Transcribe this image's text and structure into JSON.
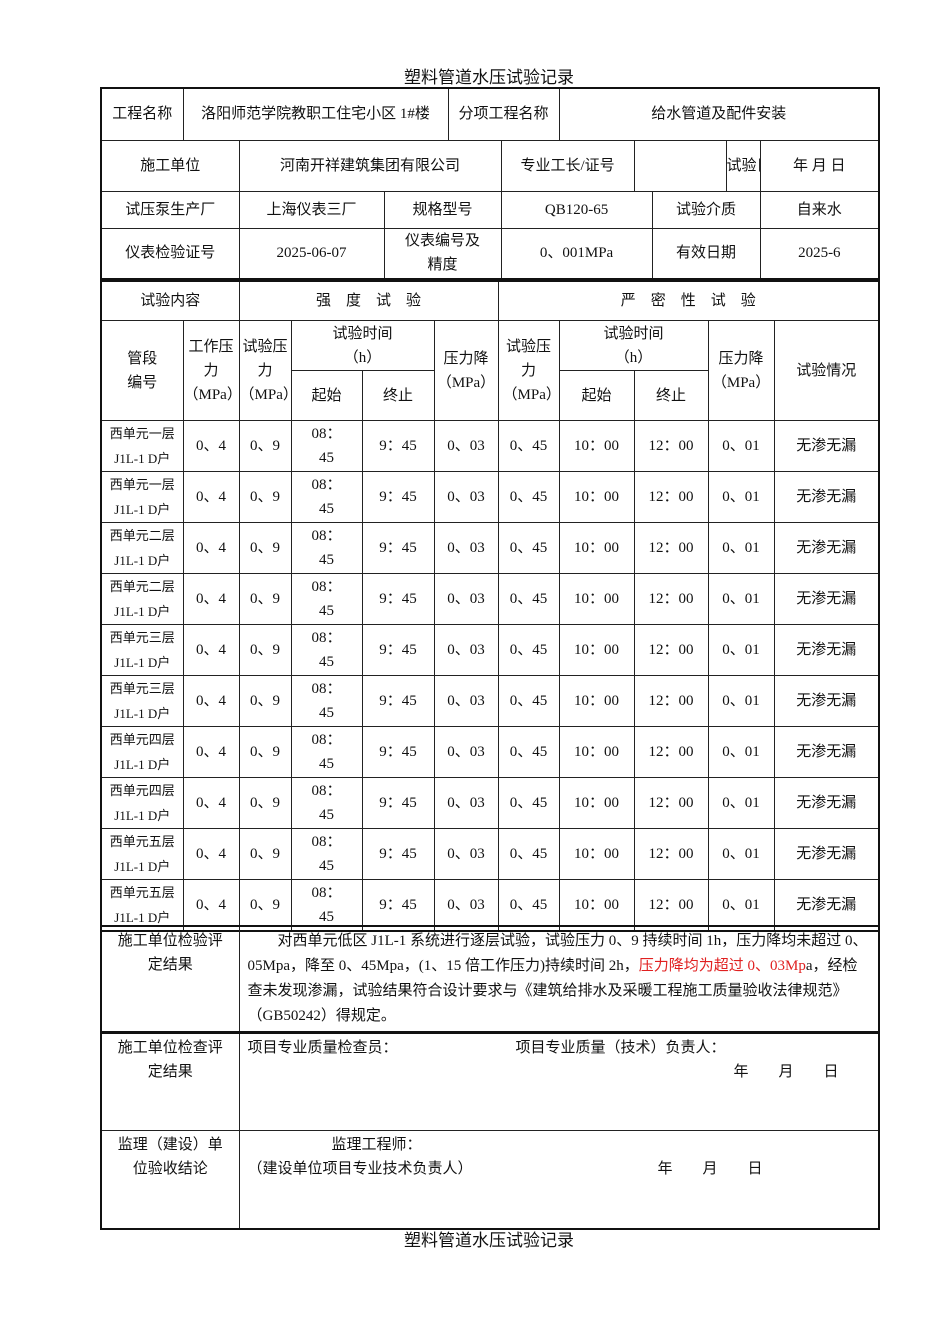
{
  "title": "塑料管道水压试验记录",
  "footer_title": "塑料管道水压试验记录",
  "info": {
    "project_name_label": "工程名称",
    "project_name": "洛阳师范学院教职工住宅小区 1#楼",
    "sub_project_label": "分项工程名称",
    "sub_project": "给水管道及配件安装",
    "contractor_label": "施工单位",
    "contractor": "河南开祥建筑集团有限公司",
    "foreman_label": "专业工长/证号",
    "foreman": "",
    "test_date_label": "试验日期",
    "test_date": "年 月 日",
    "pump_maker_label": "试压泵生产厂",
    "pump_maker": "上海仪表三厂",
    "model_label": "规格型号",
    "model": "QB120-65",
    "medium_label": "试验介质",
    "medium": "自来水",
    "cert_label": "仪表检验证号",
    "cert": "2025-06-07",
    "gauge_label": "仪表编号及精度",
    "gauge": "0、001MPa",
    "valid_label": "有效日期",
    "valid": "2025-6"
  },
  "headers": {
    "content": "试验内容",
    "strength": "强　度　试　验",
    "tightness": "严　密　性　试　验",
    "segment": "管段编号",
    "work_pressure": "工作压力（MPa）",
    "test_pressure": "试验压力（MPa）",
    "test_time": "试验时间（h）",
    "start": "起始",
    "end": "终止",
    "pressure_drop": "压力降（MPa）",
    "t_test_pressure": "试验压力（MPa）",
    "t_test_time": "试验时间（h）",
    "t_start": "起始",
    "t_end": "终止",
    "t_pressure_drop": "压力降（MPa）",
    "result": "试验情况"
  },
  "rows": [
    {
      "seg": "西单元一层 J1L-1 D户",
      "wp": "0、4",
      "tp": "0、9",
      "s": "08：45",
      "e": "9：45",
      "pd": "0、03",
      "ttp": "0、45",
      "ts": "10：00",
      "te": "12：00",
      "tpd": "0、01",
      "r": "无渗无漏"
    },
    {
      "seg": "西单元一层 J1L-1 D户",
      "wp": "0、4",
      "tp": "0、9",
      "s": "08：45",
      "e": "9：45",
      "pd": "0、03",
      "ttp": "0、45",
      "ts": "10：00",
      "te": "12：00",
      "tpd": "0、01",
      "r": "无渗无漏"
    },
    {
      "seg": "西单元二层 J1L-1 D户",
      "wp": "0、4",
      "tp": "0、9",
      "s": "08：45",
      "e": "9：45",
      "pd": "0、03",
      "ttp": "0、45",
      "ts": "10：00",
      "te": "12：00",
      "tpd": "0、01",
      "r": "无渗无漏"
    },
    {
      "seg": "西单元二层 J1L-1 D户",
      "wp": "0、4",
      "tp": "0、9",
      "s": "08：45",
      "e": "9：45",
      "pd": "0、03",
      "ttp": "0、45",
      "ts": "10：00",
      "te": "12：00",
      "tpd": "0、01",
      "r": "无渗无漏"
    },
    {
      "seg": "西单元三层 J1L-1 D户",
      "wp": "0、4",
      "tp": "0、9",
      "s": "08：45",
      "e": "9：45",
      "pd": "0、03",
      "ttp": "0、45",
      "ts": "10：00",
      "te": "12：00",
      "tpd": "0、01",
      "r": "无渗无漏"
    },
    {
      "seg": "西单元三层 J1L-1 D户",
      "wp": "0、4",
      "tp": "0、9",
      "s": "08：45",
      "e": "9：45",
      "pd": "0、03",
      "ttp": "0、45",
      "ts": "10：00",
      "te": "12：00",
      "tpd": "0、01",
      "r": "无渗无漏"
    },
    {
      "seg": "西单元四层 J1L-1 D户",
      "wp": "0、4",
      "tp": "0、9",
      "s": "08：45",
      "e": "9：45",
      "pd": "0、03",
      "ttp": "0、45",
      "ts": "10：00",
      "te": "12：00",
      "tpd": "0、01",
      "r": "无渗无漏"
    },
    {
      "seg": "西单元四层 J1L-1 D户",
      "wp": "0、4",
      "tp": "0、9",
      "s": "08：45",
      "e": "9：45",
      "pd": "0、03",
      "ttp": "0、45",
      "ts": "10：00",
      "te": "12：00",
      "tpd": "0、01",
      "r": "无渗无漏"
    },
    {
      "seg": "西单元五层 J1L-1 D户",
      "wp": "0、4",
      "tp": "0、9",
      "s": "08：45",
      "e": "9：45",
      "pd": "0、03",
      "ttp": "0、45",
      "ts": "10：00",
      "te": "12：00",
      "tpd": "0、01",
      "r": "无渗无漏"
    },
    {
      "seg": "西单元五层 J1L-1 D户",
      "wp": "0、4",
      "tp": "0、9",
      "s": "08：45",
      "e": "9：45",
      "pd": "0、03",
      "ttp": "0、45",
      "ts": "10：00",
      "te": "12：00",
      "tpd": "0、01",
      "r": "无渗无漏"
    }
  ],
  "evaluation": {
    "label": "施工单位检验评定结果",
    "text_a": "对西单元低区 J1L-1 系统进行逐层试验，试验压力 0、9 持续时间 1h，压力降均未超过 0、05Mpa，降至 0、45Mpa，(1、15 倍工作压力)持续时间 2h，",
    "text_red": "压力降均为超过 0、03Mp",
    "text_b": "a，经检查未发现渗漏，试验结果符合设计要求与《建筑给排水及采暖工程施工质量验收法律规范》（GB50242）得规定。",
    "red_color": "#e02020"
  },
  "inspection": {
    "label": "施工单位检查评定结果",
    "inspector": "项目专业质量检查员：",
    "manager": "项目专业质量（技术）负责人：",
    "date": "年　　月　　日"
  },
  "supervision": {
    "label": "监理（建设）单位验收结论",
    "engineer": "监理工程师：",
    "owner": "（建设单位项目专业技术负责人）",
    "date": "年　　月　　日"
  }
}
